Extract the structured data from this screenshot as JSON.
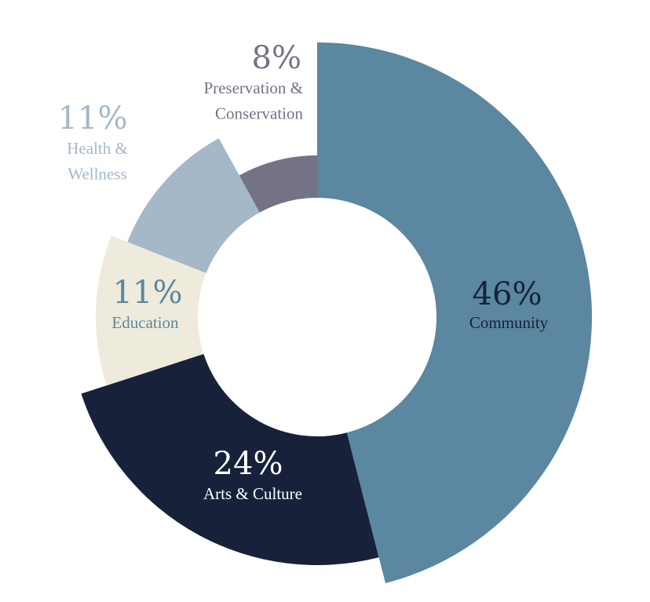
{
  "chart_data": {
    "type": "pie",
    "variant": "donut",
    "title": "",
    "slices": [
      {
        "label": "Community",
        "label_lines": [
          "Community"
        ],
        "value": 46,
        "value_label": "46%",
        "color": "#5b87a0",
        "text_color": "#16223a"
      },
      {
        "label": "Arts & Culture",
        "label_lines": [
          "Arts & Culture"
        ],
        "value": 24,
        "value_label": "24%",
        "color": "#17223a",
        "text_color": "#ffffff"
      },
      {
        "label": "Education",
        "label_lines": [
          "Education"
        ],
        "value": 11,
        "value_label": "11%",
        "color": "#efebdc",
        "text_color": "#5b87a0"
      },
      {
        "label": "Health & Wellness",
        "label_lines": [
          "Health &",
          "Wellness"
        ],
        "value": 11,
        "value_label": "11%",
        "color": "#a5b8c8",
        "text_color": "#a5b8c8"
      },
      {
        "label": "Preservation & Conservation",
        "label_lines": [
          "Preservation &",
          "Conservation"
        ],
        "value": 8,
        "value_label": "8%",
        "color": "#747385",
        "text_color": "#747385"
      }
    ]
  }
}
